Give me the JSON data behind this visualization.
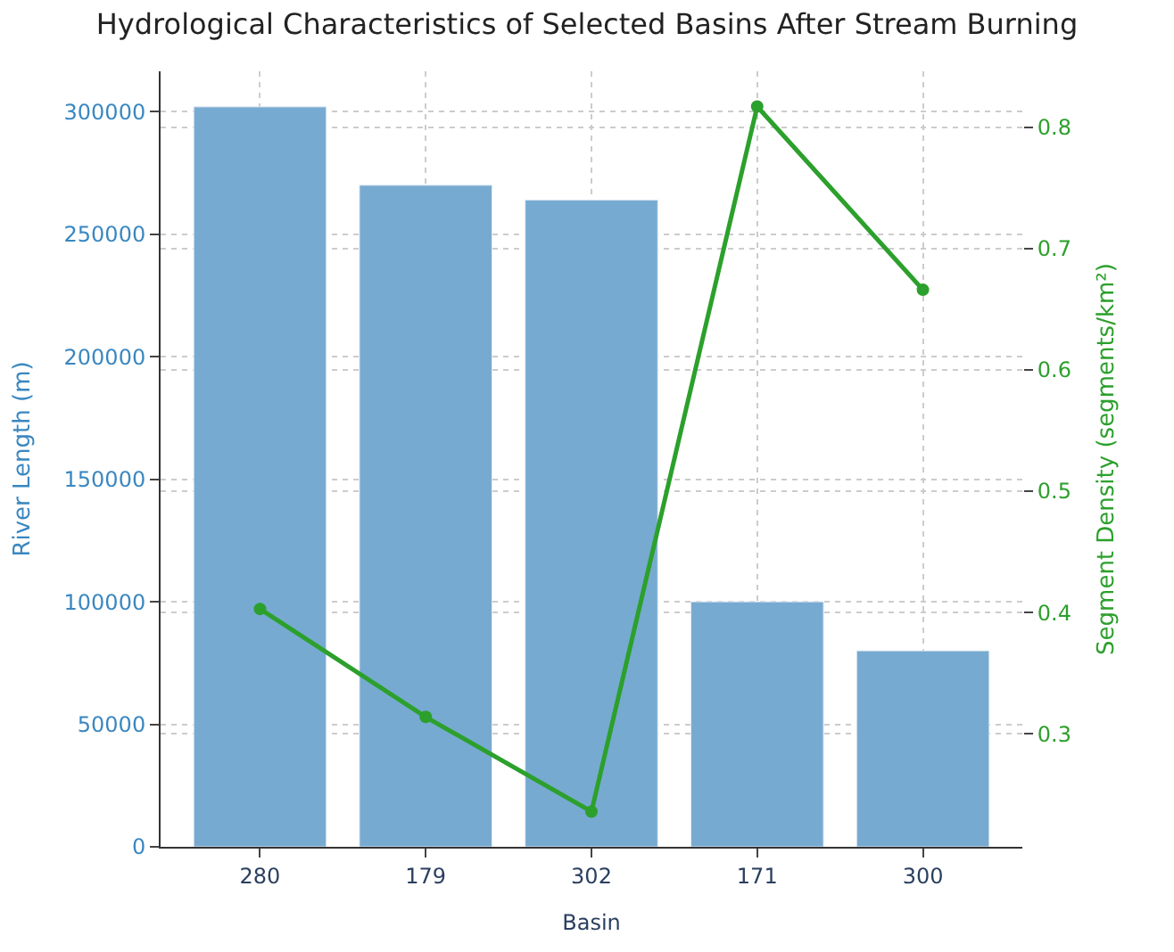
{
  "chart_data": {
    "type": "bar",
    "title": "Hydrological Characteristics of Selected Basins After Stream Burning",
    "xlabel": "Basin",
    "ylabel": "River Length (m)",
    "y2label": "Segment Density (segments/km²)",
    "categories": [
      "280",
      "179",
      "302",
      "171",
      "300"
    ],
    "series": [
      {
        "name": null,
        "color": "#77aad0",
        "values": [
          302000,
          270000,
          264000,
          100000,
          80000
        ]
      },
      {
        "name": null,
        "type": "line",
        "axis": "y2",
        "color": "#2ca02c",
        "values": [
          0.403,
          0.314,
          0.236,
          0.817,
          0.666
        ]
      }
    ],
    "ylim": [
      0,
      316500
    ],
    "yticks": [
      0,
      50000,
      100000,
      150000,
      200000,
      250000,
      300000
    ],
    "y2lim": [
      0.207,
      0.846
    ],
    "y2ticks": [
      0.3,
      0.4,
      0.5,
      0.6,
      0.7,
      0.8
    ],
    "grid": true,
    "marker": "circle",
    "line_style": "solid"
  }
}
